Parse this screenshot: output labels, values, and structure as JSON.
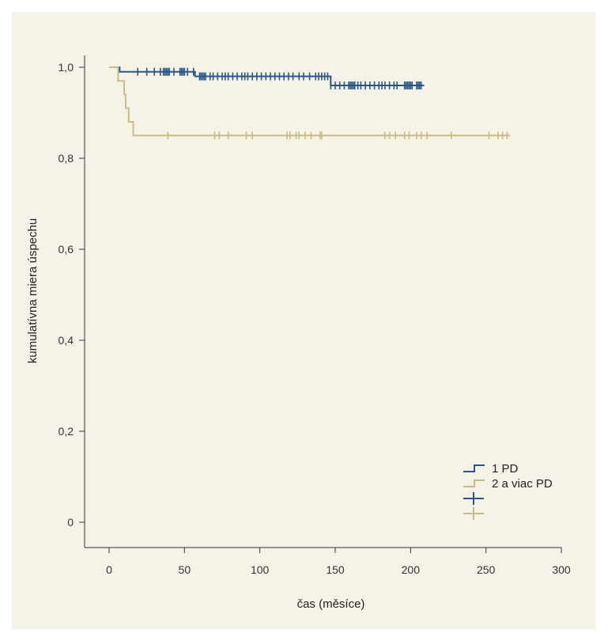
{
  "chart_data": {
    "type": "line",
    "subtype": "kaplan-meier",
    "xlabel": "čas (měsíce)",
    "ylabel": "kumulatívna miera úspechu",
    "xlim": [
      0,
      300
    ],
    "ylim": [
      0,
      1.0
    ],
    "x_ticks": [
      "0",
      "50",
      "100",
      "150",
      "200",
      "250",
      "300"
    ],
    "y_ticks": [
      "0",
      "0,2",
      "0,4",
      "0,6",
      "0,8",
      "1,0"
    ],
    "grid": false,
    "legend_position": "bottom-right",
    "series": [
      {
        "name": "1 PD",
        "color": "#2b5783",
        "steps": [
          [
            0,
            1.0
          ],
          [
            7,
            0.99
          ],
          [
            57,
            0.98
          ],
          [
            147,
            0.96
          ],
          [
            209,
            0.96
          ]
        ],
        "censored": [
          19,
          25,
          30,
          34,
          36,
          37,
          38,
          39,
          40,
          43,
          47,
          48,
          49,
          50,
          52,
          56,
          60,
          61,
          62,
          63,
          64,
          67,
          69,
          72,
          75,
          77,
          79,
          82,
          85,
          88,
          90,
          92,
          95,
          98,
          101,
          104,
          107,
          110,
          113,
          116,
          119,
          122,
          126,
          129,
          133,
          137,
          139,
          141,
          143,
          145,
          147,
          150,
          153,
          156,
          159,
          160,
          161,
          162,
          163,
          165,
          167,
          170,
          173,
          176,
          179,
          181,
          183,
          186,
          189,
          191,
          196,
          197,
          198,
          199,
          200,
          201,
          204,
          205,
          206,
          207
        ]
      },
      {
        "name": "2 a viac PD",
        "color": "#c9bb85",
        "steps": [
          [
            0,
            1.0
          ],
          [
            6,
            1.0
          ],
          [
            6,
            0.97
          ],
          [
            10,
            0.97
          ],
          [
            10,
            0.94
          ],
          [
            11,
            0.94
          ],
          [
            11,
            0.91
          ],
          [
            13,
            0.91
          ],
          [
            13,
            0.88
          ],
          [
            16,
            0.88
          ],
          [
            16,
            0.85
          ],
          [
            266,
            0.85
          ]
        ],
        "censored": [
          39,
          70,
          73,
          79,
          91,
          95,
          118,
          120,
          124,
          126,
          130,
          134,
          140,
          141,
          183,
          186,
          190,
          196,
          199,
          204,
          207,
          211,
          227,
          252,
          258,
          261,
          264
        ]
      }
    ]
  }
}
